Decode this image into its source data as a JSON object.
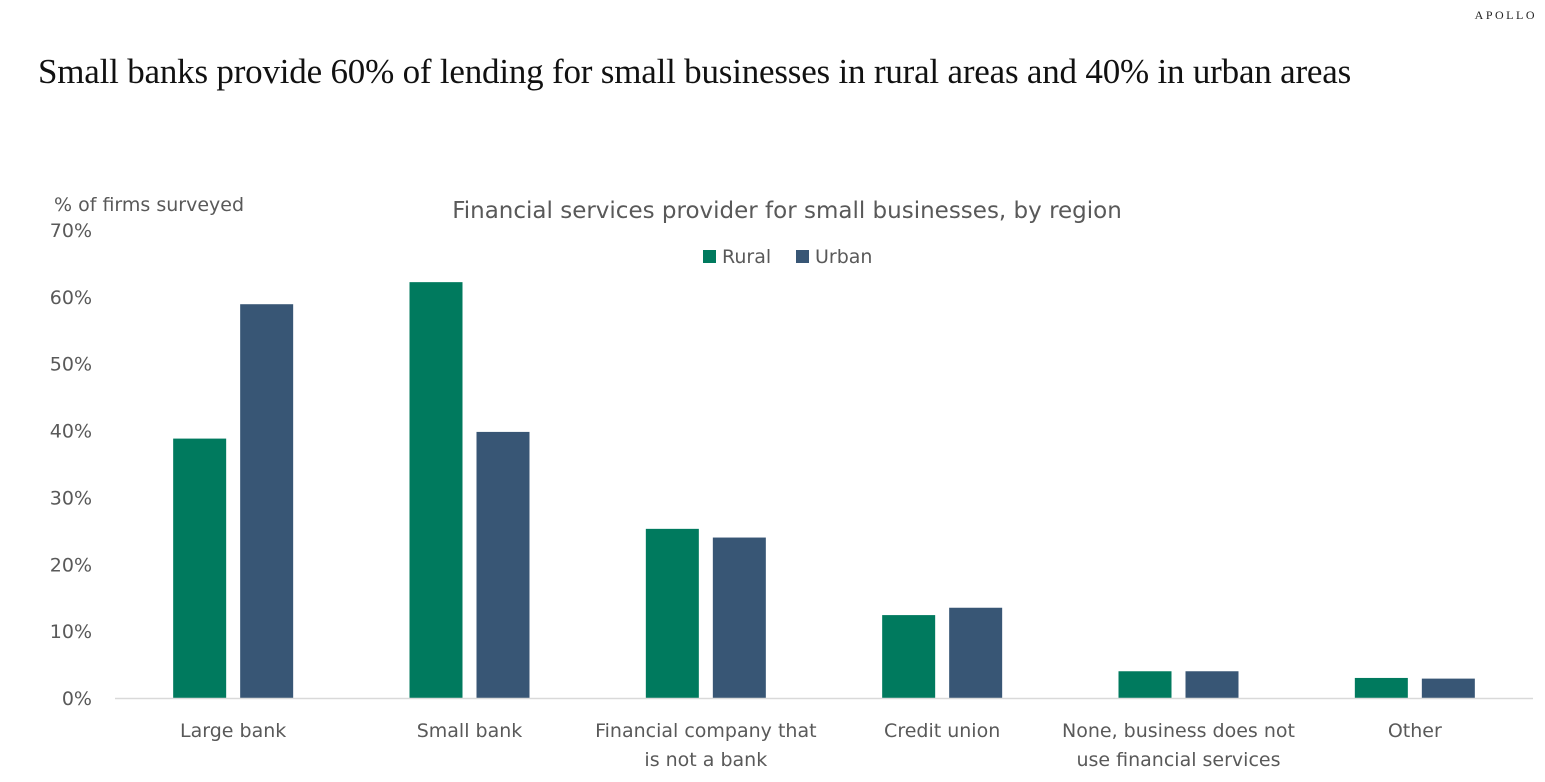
{
  "brand": "APOLLO",
  "headline": "Small banks provide 60% of lending for small businesses in rural areas and 40% in urban areas",
  "colors": {
    "rural": "#007a5e",
    "urban": "#385675",
    "axis_text": "#595959",
    "axis_line": "#d9d9d9"
  },
  "chart_data": {
    "type": "bar",
    "title": "Financial services provider for small businesses, by region",
    "ylabel": "% of firms surveyed",
    "xlabel": "",
    "ylim": [
      0,
      70
    ],
    "yticks": [
      "0%",
      "10%",
      "20%",
      "30%",
      "40%",
      "50%",
      "60%",
      "70%"
    ],
    "grid": false,
    "legend_position": "top-center",
    "categories": [
      [
        "Large bank"
      ],
      [
        "Small bank"
      ],
      [
        "Financial company that",
        "is not a bank"
      ],
      [
        "Credit union"
      ],
      [
        "None, business does not",
        "use financial services"
      ],
      [
        "Other"
      ]
    ],
    "series": [
      {
        "name": "Rural",
        "color": "#007a5e",
        "values": [
          38.8,
          62.2,
          25.3,
          12.4,
          4.0,
          3.0
        ]
      },
      {
        "name": "Urban",
        "color": "#385675",
        "values": [
          58.9,
          39.8,
          24.0,
          13.5,
          4.0,
          2.9
        ]
      }
    ]
  }
}
